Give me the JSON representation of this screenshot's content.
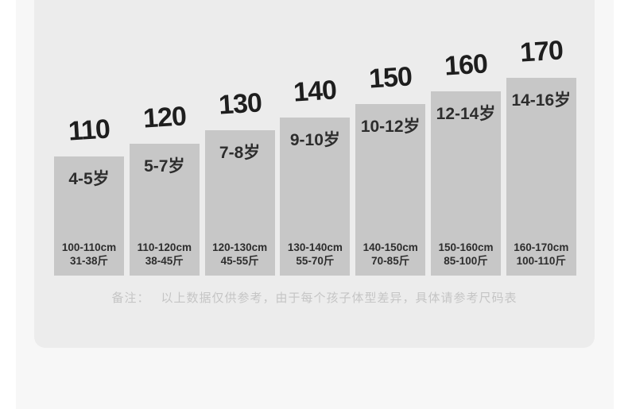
{
  "theme": {
    "page_bg": "#ffffff",
    "panel_bg": "#f7f7f7",
    "card_bg": "#ececec",
    "bar_color": "#c7c7c7",
    "number_color": "#1e1e1e",
    "text_color": "#2d2d2d",
    "note_color": "#c5c5c5"
  },
  "sizes": [
    {
      "size": "110",
      "age": "4-5岁",
      "height_range": "100-110cm",
      "weight_range": "31-38斤"
    },
    {
      "size": "120",
      "age": "5-7岁",
      "height_range": "110-120cm",
      "weight_range": "38-45斤"
    },
    {
      "size": "130",
      "age": "7-8岁",
      "height_range": "120-130cm",
      "weight_range": "45-55斤"
    },
    {
      "size": "140",
      "age": "9-10岁",
      "height_range": "130-140cm",
      "weight_range": "55-70斤"
    },
    {
      "size": "150",
      "age": "10-12岁",
      "height_range": "140-150cm",
      "weight_range": "70-85斤"
    },
    {
      "size": "160",
      "age": "12-14岁",
      "height_range": "150-160cm",
      "weight_range": "85-100斤"
    },
    {
      "size": "170",
      "age": "14-16岁",
      "height_range": "160-170cm",
      "weight_range": "100-110斤"
    }
  ],
  "note": {
    "label": "备注：",
    "text": "以上数据仅供参考，由于每个孩子体型差异，具体请参考尺码表"
  },
  "chart_data": {
    "type": "bar",
    "title": "",
    "categories": [
      "110",
      "120",
      "130",
      "140",
      "150",
      "160",
      "170"
    ],
    "values": [
      110,
      120,
      130,
      140,
      150,
      160,
      170
    ],
    "series": [
      {
        "name": "age",
        "values": [
          "4-5岁",
          "5-7岁",
          "7-8岁",
          "9-10岁",
          "10-12岁",
          "12-14岁",
          "14-16岁"
        ]
      },
      {
        "name": "height",
        "values": [
          "100-110cm",
          "110-120cm",
          "120-130cm",
          "130-140cm",
          "140-150cm",
          "150-160cm",
          "160-170cm"
        ]
      },
      {
        "name": "weight",
        "values": [
          "31-38斤",
          "38-45斤",
          "45-55斤",
          "55-70斤",
          "70-85斤",
          "85-100斤",
          "100-110斤"
        ]
      }
    ],
    "xlabel": "",
    "ylabel": "",
    "legend": "none",
    "grid": false,
    "annotation": "备注： 以上数据仅供参考，由于每个孩子体型差异，具体请参考尺码表"
  }
}
